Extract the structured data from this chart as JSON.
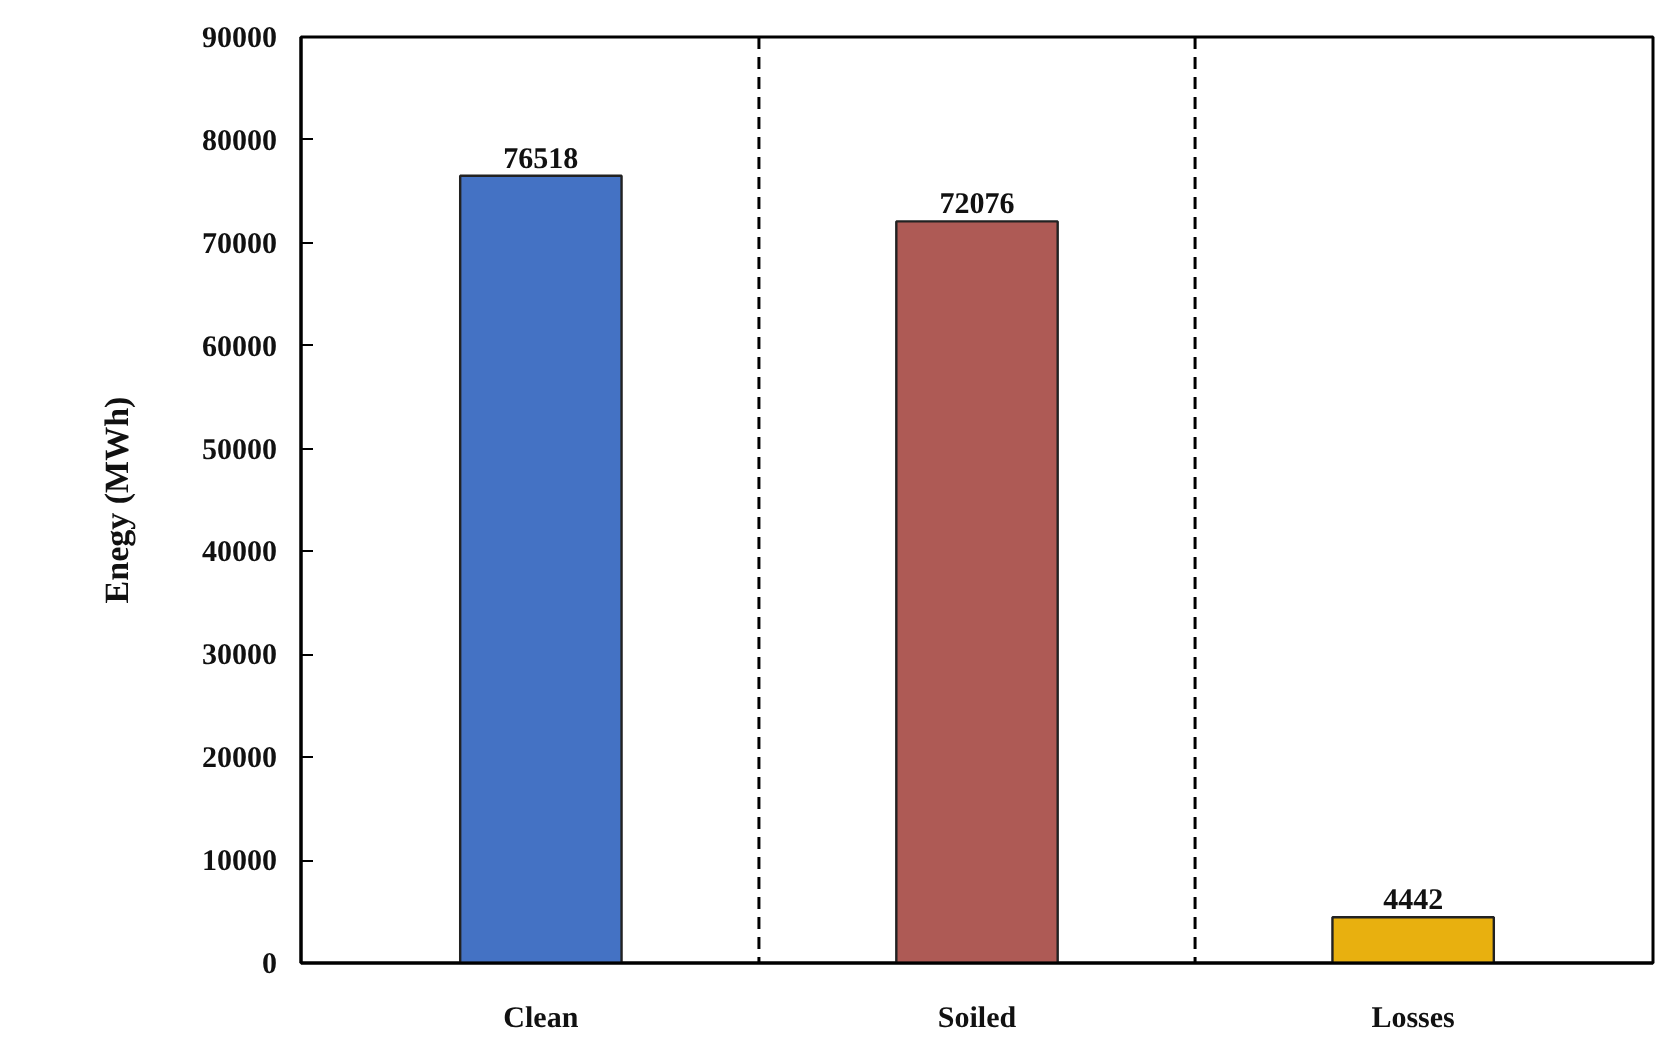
{
  "chart_data": {
    "type": "bar",
    "ylabel": "Enegy (MWh)",
    "categories": [
      "Clean",
      "Soiled",
      "Losses"
    ],
    "values": [
      76518,
      72076,
      4442
    ],
    "colors": [
      "#4472c4",
      "#ae5a55",
      "#e8b00f"
    ],
    "ylim": [
      0,
      90000
    ],
    "yticks": [
      0,
      10000,
      20000,
      30000,
      40000,
      50000,
      60000,
      70000,
      80000,
      90000
    ],
    "data_labels": true,
    "grid": false
  }
}
